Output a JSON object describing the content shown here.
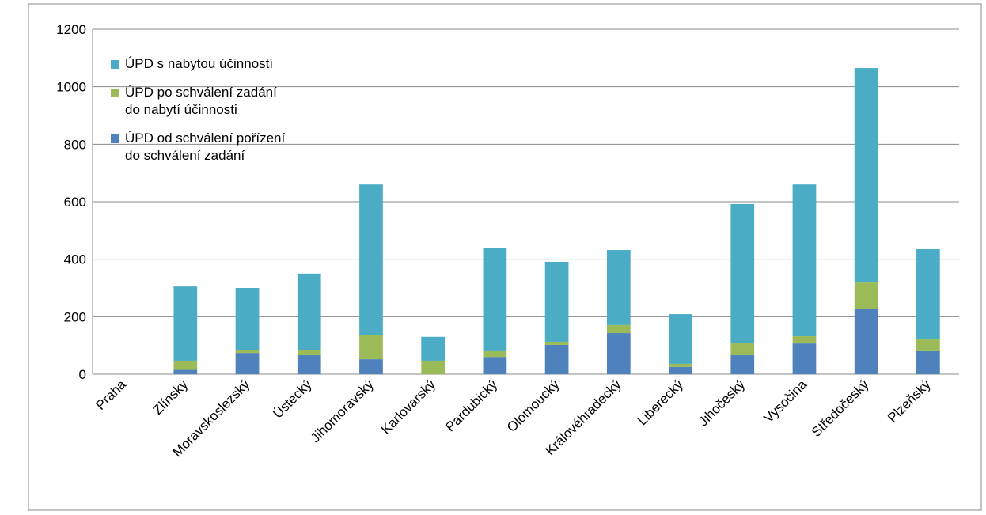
{
  "chart_data": {
    "type": "stacked_bar",
    "categories": [
      "Praha",
      "Zlínský",
      "Moravskoslezský",
      "Ústecký",
      "Jihomoravský",
      "Karlovarský",
      "Pardubický",
      "Olomoucký",
      "Královéhradecký",
      "Liberecký",
      "Jihočeský",
      "Vysočina",
      "Středočeský",
      "Plzeňský"
    ],
    "series": [
      {
        "name": "ÚPD od schválení pořízení\ndo schválení zadání",
        "color": "#4f81bd",
        "values": [
          0,
          15,
          74,
          66,
          52,
          0,
          60,
          102,
          143,
          25,
          66,
          107,
          226,
          80
        ]
      },
      {
        "name": "ÚPD po schválení zadání\ndo nabytí účinnosti",
        "color": "#9bbb59",
        "values": [
          0,
          32,
          9,
          17,
          83,
          47,
          20,
          11,
          28,
          11,
          44,
          25,
          93,
          41
        ]
      },
      {
        "name": "ÚPD s nabytou účinností",
        "color": "#4bacc6",
        "values": [
          0,
          258,
          217,
          267,
          525,
          83,
          360,
          278,
          261,
          173,
          482,
          528,
          746,
          314
        ]
      }
    ],
    "ylim": [
      0,
      1200
    ],
    "yticks": [
      0,
      200,
      400,
      600,
      800,
      1000,
      1200
    ],
    "grid": true
  }
}
